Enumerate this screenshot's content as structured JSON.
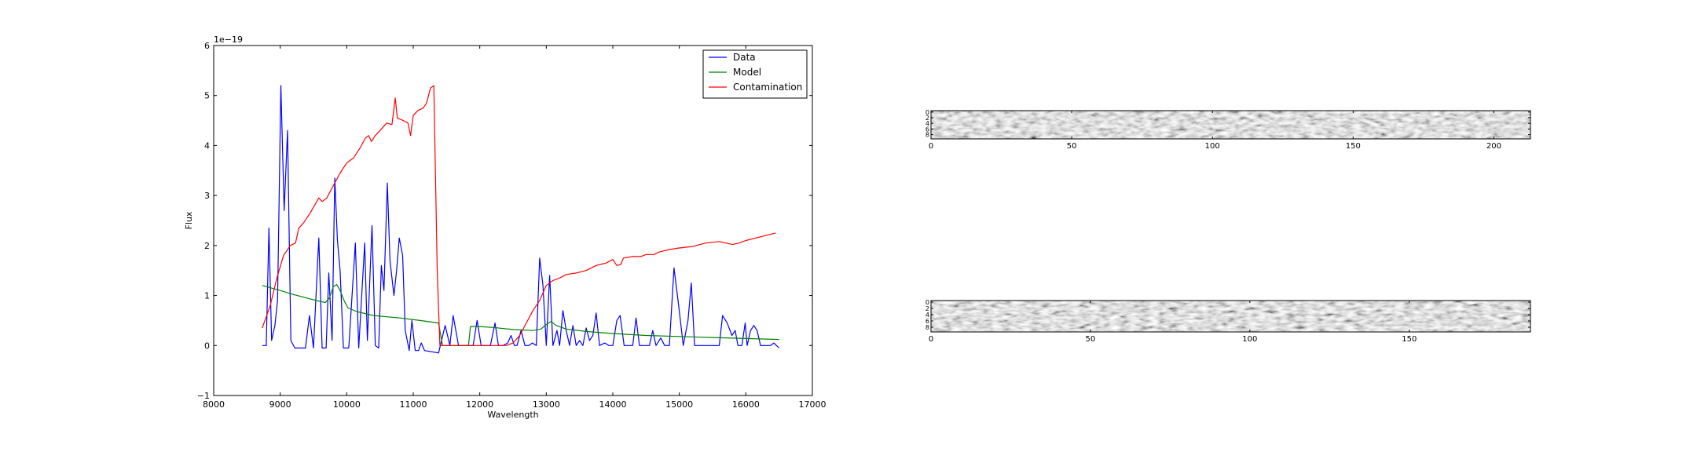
{
  "chart_data": [
    {
      "type": "line",
      "xlabel": "Wavelength",
      "ylabel": "Flux",
      "offset_text": "1e−19",
      "xlim": [
        8000,
        17000
      ],
      "ylim": [
        -1,
        6
      ],
      "xticks": [
        8000,
        9000,
        10000,
        11000,
        12000,
        13000,
        14000,
        15000,
        16000,
        17000
      ],
      "yticks": [
        -1,
        0,
        1,
        2,
        3,
        4,
        5,
        6
      ],
      "ytick_labels": [
        "−1",
        "0",
        "1",
        "2",
        "3",
        "4",
        "5",
        "6"
      ],
      "legend_position": "top-right",
      "series": [
        {
          "name": "Data",
          "color": "#0000ff",
          "points": [
            [
              8730,
              0.0
            ],
            [
              8790,
              0.0
            ],
            [
              8830,
              2.35
            ],
            [
              8870,
              0.1
            ],
            [
              8920,
              0.4
            ],
            [
              8960,
              0.9
            ],
            [
              9010,
              5.2
            ],
            [
              9060,
              2.7
            ],
            [
              9110,
              4.3
            ],
            [
              9160,
              0.1
            ],
            [
              9220,
              -0.05
            ],
            [
              9300,
              -0.05
            ],
            [
              9380,
              -0.05
            ],
            [
              9440,
              0.6
            ],
            [
              9500,
              -0.05
            ],
            [
              9580,
              2.15
            ],
            [
              9630,
              -0.05
            ],
            [
              9690,
              -0.05
            ],
            [
              9730,
              1.45
            ],
            [
              9780,
              0.1
            ],
            [
              9820,
              3.35
            ],
            [
              9860,
              2.1
            ],
            [
              9900,
              1.5
            ],
            [
              9950,
              -0.05
            ],
            [
              10030,
              -0.05
            ],
            [
              10130,
              2.05
            ],
            [
              10180,
              -0.05
            ],
            [
              10270,
              2.05
            ],
            [
              10310,
              0.1
            ],
            [
              10380,
              2.4
            ],
            [
              10430,
              0.0
            ],
            [
              10480,
              -0.05
            ],
            [
              10520,
              1.6
            ],
            [
              10560,
              1.1
            ],
            [
              10610,
              3.25
            ],
            [
              10650,
              1.7
            ],
            [
              10710,
              1.0
            ],
            [
              10750,
              1.5
            ],
            [
              10790,
              2.15
            ],
            [
              10840,
              1.8
            ],
            [
              10880,
              0.3
            ],
            [
              10940,
              -0.1
            ],
            [
              10980,
              0.5
            ],
            [
              11030,
              -0.1
            ],
            [
              11080,
              -0.1
            ],
            [
              11120,
              0.05
            ],
            [
              11170,
              -0.1
            ],
            [
              11380,
              -0.15
            ],
            [
              11480,
              0.4
            ],
            [
              11550,
              0.0
            ],
            [
              11600,
              0.6
            ],
            [
              11680,
              0.0
            ],
            [
              11800,
              0.0
            ],
            [
              11900,
              0.0
            ],
            [
              11960,
              0.5
            ],
            [
              12020,
              0.0
            ],
            [
              12100,
              0.0
            ],
            [
              12160,
              0.0
            ],
            [
              12230,
              0.45
            ],
            [
              12280,
              0.0
            ],
            [
              12350,
              0.0
            ],
            [
              12420,
              0.05
            ],
            [
              12470,
              0.2
            ],
            [
              12520,
              0.0
            ],
            [
              12560,
              0.0
            ],
            [
              12620,
              0.3
            ],
            [
              12680,
              0.0
            ],
            [
              12740,
              0.0
            ],
            [
              12790,
              0.05
            ],
            [
              12850,
              0.0
            ],
            [
              12900,
              1.75
            ],
            [
              12950,
              1.2
            ],
            [
              13000,
              0.0
            ],
            [
              13050,
              1.4
            ],
            [
              13100,
              0.0
            ],
            [
              13160,
              0.3
            ],
            [
              13200,
              0.0
            ],
            [
              13250,
              0.7
            ],
            [
              13300,
              0.3
            ],
            [
              13350,
              0.0
            ],
            [
              13400,
              0.4
            ],
            [
              13450,
              0.0
            ],
            [
              13500,
              0.1
            ],
            [
              13550,
              0.0
            ],
            [
              13600,
              0.35
            ],
            [
              13650,
              0.1
            ],
            [
              13700,
              0.2
            ],
            [
              13750,
              0.65
            ],
            [
              13800,
              0.0
            ],
            [
              13880,
              0.05
            ],
            [
              13940,
              0.0
            ],
            [
              14000,
              0.0
            ],
            [
              14060,
              0.5
            ],
            [
              14110,
              0.6
            ],
            [
              14170,
              0.0
            ],
            [
              14240,
              0.0
            ],
            [
              14300,
              0.0
            ],
            [
              14350,
              0.55
            ],
            [
              14400,
              0.0
            ],
            [
              14470,
              0.0
            ],
            [
              14550,
              0.0
            ],
            [
              14600,
              0.3
            ],
            [
              14650,
              0.0
            ],
            [
              14720,
              0.15
            ],
            [
              14780,
              0.0
            ],
            [
              14850,
              0.0
            ],
            [
              14920,
              1.55
            ],
            [
              14990,
              0.8
            ],
            [
              15060,
              0.0
            ],
            [
              15130,
              0.5
            ],
            [
              15180,
              1.25
            ],
            [
              15230,
              0.0
            ],
            [
              15300,
              0.0
            ],
            [
              15400,
              0.0
            ],
            [
              15500,
              0.0
            ],
            [
              15600,
              0.0
            ],
            [
              15650,
              0.6
            ],
            [
              15720,
              0.45
            ],
            [
              15790,
              0.2
            ],
            [
              15840,
              0.3
            ],
            [
              15880,
              0.0
            ],
            [
              15940,
              0.0
            ],
            [
              15990,
              0.45
            ],
            [
              16020,
              0.0
            ],
            [
              16070,
              0.3
            ],
            [
              16120,
              0.4
            ],
            [
              16170,
              0.3
            ],
            [
              16220,
              0.0
            ],
            [
              16300,
              0.0
            ],
            [
              16370,
              0.0
            ],
            [
              16420,
              0.05
            ],
            [
              16460,
              0.0
            ],
            [
              16500,
              -0.05
            ]
          ]
        },
        {
          "name": "Model",
          "color": "#008000",
          "points": [
            [
              8730,
              1.2
            ],
            [
              9000,
              1.1
            ],
            [
              9200,
              1.02
            ],
            [
              9400,
              0.95
            ],
            [
              9600,
              0.88
            ],
            [
              9680,
              0.86
            ],
            [
              9740,
              0.95
            ],
            [
              9800,
              1.18
            ],
            [
              9850,
              1.22
            ],
            [
              9900,
              1.1
            ],
            [
              9960,
              0.9
            ],
            [
              10020,
              0.75
            ],
            [
              10150,
              0.68
            ],
            [
              10400,
              0.6
            ],
            [
              10800,
              0.55
            ],
            [
              11100,
              0.5
            ],
            [
              11380,
              0.45
            ],
            [
              11440,
              0.0
            ],
            [
              11700,
              0.0
            ],
            [
              11830,
              0.0
            ],
            [
              11860,
              0.38
            ],
            [
              12000,
              0.38
            ],
            [
              12200,
              0.36
            ],
            [
              12500,
              0.32
            ],
            [
              12800,
              0.3
            ],
            [
              12920,
              0.33
            ],
            [
              13000,
              0.42
            ],
            [
              13070,
              0.48
            ],
            [
              13150,
              0.4
            ],
            [
              13300,
              0.33
            ],
            [
              13600,
              0.28
            ],
            [
              14000,
              0.24
            ],
            [
              14500,
              0.2
            ],
            [
              15000,
              0.18
            ],
            [
              15500,
              0.16
            ],
            [
              16000,
              0.14
            ],
            [
              16500,
              0.12
            ]
          ]
        },
        {
          "name": "Contamination",
          "color": "#ff0000",
          "points": [
            [
              8730,
              0.35
            ],
            [
              8850,
              0.8
            ],
            [
              8950,
              1.35
            ],
            [
              9050,
              1.8
            ],
            [
              9150,
              2.0
            ],
            [
              9230,
              2.05
            ],
            [
              9280,
              2.35
            ],
            [
              9350,
              2.45
            ],
            [
              9450,
              2.65
            ],
            [
              9580,
              2.95
            ],
            [
              9630,
              2.88
            ],
            [
              9700,
              2.95
            ],
            [
              9800,
              3.2
            ],
            [
              9900,
              3.45
            ],
            [
              10000,
              3.65
            ],
            [
              10100,
              3.75
            ],
            [
              10200,
              3.95
            ],
            [
              10280,
              4.15
            ],
            [
              10330,
              4.2
            ],
            [
              10370,
              4.08
            ],
            [
              10430,
              4.2
            ],
            [
              10500,
              4.3
            ],
            [
              10600,
              4.45
            ],
            [
              10680,
              4.42
            ],
            [
              10730,
              4.95
            ],
            [
              10760,
              4.55
            ],
            [
              10850,
              4.5
            ],
            [
              10920,
              4.45
            ],
            [
              10960,
              4.2
            ],
            [
              11000,
              4.6
            ],
            [
              11070,
              4.7
            ],
            [
              11150,
              4.75
            ],
            [
              11200,
              4.85
            ],
            [
              11260,
              5.15
            ],
            [
              11310,
              5.2
            ],
            [
              11360,
              1.5
            ],
            [
              11400,
              0.0
            ],
            [
              11600,
              0.0
            ],
            [
              11800,
              0.0
            ],
            [
              12000,
              0.0
            ],
            [
              12200,
              0.0
            ],
            [
              12400,
              0.0
            ],
            [
              12500,
              0.05
            ],
            [
              12600,
              0.2
            ],
            [
              12700,
              0.45
            ],
            [
              12800,
              0.7
            ],
            [
              12900,
              0.9
            ],
            [
              13000,
              1.2
            ],
            [
              13100,
              1.3
            ],
            [
              13200,
              1.35
            ],
            [
              13300,
              1.42
            ],
            [
              13450,
              1.45
            ],
            [
              13600,
              1.5
            ],
            [
              13750,
              1.6
            ],
            [
              13900,
              1.65
            ],
            [
              14000,
              1.72
            ],
            [
              14060,
              1.6
            ],
            [
              14120,
              1.62
            ],
            [
              14160,
              1.75
            ],
            [
              14300,
              1.78
            ],
            [
              14420,
              1.78
            ],
            [
              14500,
              1.82
            ],
            [
              14620,
              1.82
            ],
            [
              14700,
              1.87
            ],
            [
              14850,
              1.92
            ],
            [
              15000,
              1.95
            ],
            [
              15200,
              1.98
            ],
            [
              15400,
              2.05
            ],
            [
              15600,
              2.08
            ],
            [
              15700,
              2.05
            ],
            [
              15800,
              2.02
            ],
            [
              15900,
              2.05
            ],
            [
              16000,
              2.1
            ],
            [
              16150,
              2.15
            ],
            [
              16300,
              2.2
            ],
            [
              16450,
              2.25
            ]
          ]
        }
      ]
    },
    {
      "type": "heatmap",
      "colormap": "gray",
      "xlim": [
        0,
        213
      ],
      "ylim": [
        0,
        10
      ],
      "xticks": [
        0,
        50,
        100,
        150,
        200
      ],
      "yticks": [
        0,
        2,
        4,
        6,
        8
      ]
    },
    {
      "type": "heatmap",
      "colormap": "gray",
      "xlim": [
        0,
        188
      ],
      "ylim": [
        0,
        10
      ],
      "xticks": [
        0,
        50,
        100,
        150
      ],
      "yticks": [
        0,
        2,
        4,
        6,
        8
      ]
    }
  ]
}
